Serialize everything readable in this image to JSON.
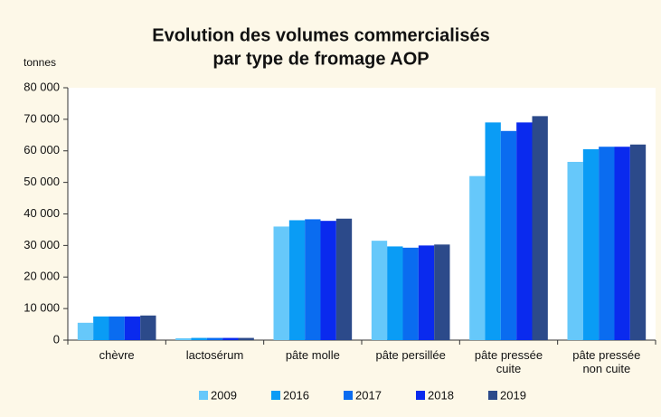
{
  "chart_data": {
    "type": "bar",
    "title": [
      "Evolution des volumes commercialisés",
      "par type de fromage AOP"
    ],
    "y_axis_label": "tonnes",
    "categories": [
      "chèvre",
      "lactosérum",
      "pâte molle",
      "pâte persillée",
      "pâte pressée cuite",
      "pâte pressée non cuite"
    ],
    "series": [
      {
        "name": "2009",
        "color": "#66c8fa",
        "values": [
          5500,
          600,
          36000,
          31500,
          52000,
          56500
        ]
      },
      {
        "name": "2016",
        "color": "#0a9cf5",
        "values": [
          7500,
          700,
          38000,
          29700,
          69000,
          60500
        ]
      },
      {
        "name": "2017",
        "color": "#0a6cf0",
        "values": [
          7500,
          700,
          38300,
          29300,
          66300,
          61300
        ]
      },
      {
        "name": "2018",
        "color": "#0a2aee",
        "values": [
          7500,
          700,
          37800,
          30000,
          69000,
          61300
        ]
      },
      {
        "name": "2019",
        "color": "#2c4a8a",
        "values": [
          7800,
          700,
          38500,
          30300,
          71000,
          62000
        ]
      }
    ],
    "ylim": [
      0,
      80000
    ],
    "yticks": [
      0,
      {
        "value": 10000,
        "label": "10 000"
      },
      {
        "value": 20000,
        "label": "20 000"
      },
      {
        "value": 30000,
        "label": "30 000"
      },
      {
        "value": 40000,
        "label": "40 000"
      },
      {
        "value": 50000,
        "label": "50 000"
      },
      {
        "value": 60000,
        "label": "60 000"
      },
      {
        "value": 70000,
        "label": "70 000"
      },
      {
        "value": 80000,
        "label": "80 000"
      }
    ]
  }
}
